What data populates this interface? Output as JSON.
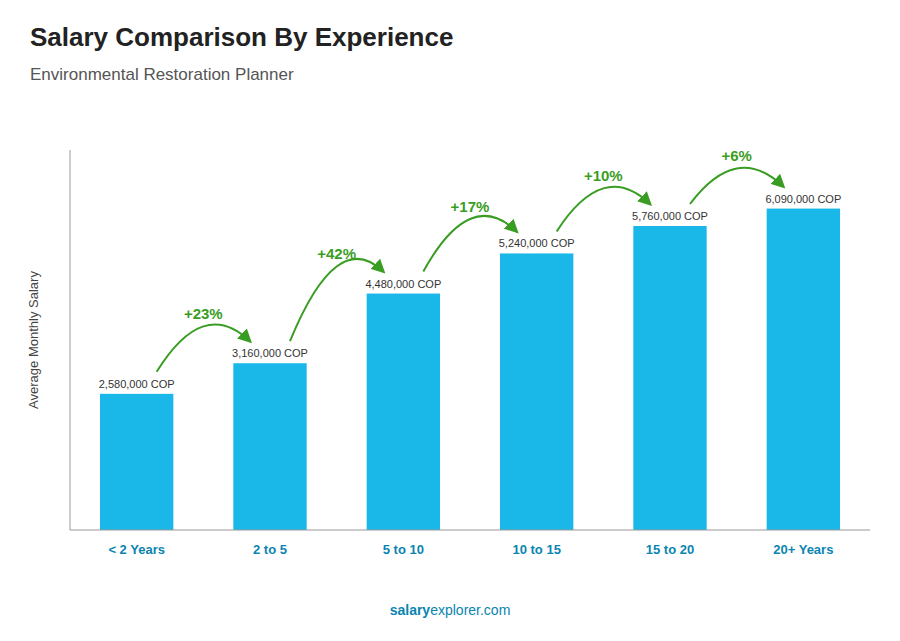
{
  "chart_data": {
    "type": "bar",
    "title": "Salary Comparison By Experience",
    "subtitle": "Environmental Restoration Planner",
    "categories": [
      "< 2 Years",
      "2 to 5",
      "5 to 10",
      "10 to 15",
      "15 to 20",
      "20+ Years"
    ],
    "values": [
      2580000,
      3160000,
      4480000,
      5240000,
      5760000,
      6090000
    ],
    "value_labels": [
      "2,580,000 COP",
      "3,160,000 COP",
      "4,480,000 COP",
      "5,240,000 COP",
      "5,760,000 COP",
      "6,090,000 COP"
    ],
    "data_labels": true,
    "annotations": [
      "+23%",
      "+42%",
      "+17%",
      "+10%",
      "+6%"
    ],
    "y_label": "Average Monthly Salary",
    "footer": [
      "salary",
      "explorer.com"
    ],
    "color": "#1ab8e8",
    "ylim": [
      0,
      7200000
    ],
    "grid": false,
    "tick_labels": "x"
  }
}
